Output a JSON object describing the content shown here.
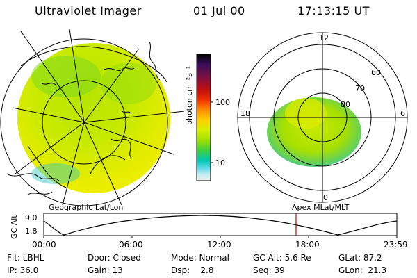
{
  "header": {
    "title": "Ultraviolet Imager",
    "date": "01 Jul 00",
    "time": "17:13:15 UT"
  },
  "colorbar": {
    "unit_label": "photon cm⁻²s⁻¹",
    "ticks": [
      "100",
      "10"
    ],
    "colors": [
      "#000000",
      "#3a0f5a",
      "#7a1040",
      "#c01010",
      "#f03000",
      "#ff8c00",
      "#ffd000",
      "#d6f000",
      "#a0e000",
      "#40d040",
      "#00c8b0",
      "#60d8e8",
      "#c0ecf0",
      "#f0f0f0"
    ]
  },
  "panels": {
    "left_label": "Geographic Lat/Lon",
    "right_label": "Apex MLat/MLT",
    "polar_mlt_labels": [
      "12",
      "18",
      "6",
      "0"
    ],
    "polar_lat_labels": [
      "60",
      "70",
      "80"
    ]
  },
  "altitude_plot": {
    "ylabel": "GC Alt",
    "yticks": [
      "9.0",
      "1.8"
    ],
    "xticks": [
      "00:00",
      "06:00",
      "12:00",
      "18:00",
      "23:59"
    ],
    "marker_time": "17:13"
  },
  "status": {
    "filter": "Flt: LBHL",
    "door": "Door: Closed",
    "mode": "Mode: Normal",
    "gc_alt": "GC Alt: 5.6 Re",
    "glat": "GLat: 87.2",
    "ip": "IP: 36.0",
    "gain": "Gain: 13",
    "dsp": "Dsp:    2.8",
    "seq": "Seq: 39",
    "glon": "GLon:  21.3"
  }
}
